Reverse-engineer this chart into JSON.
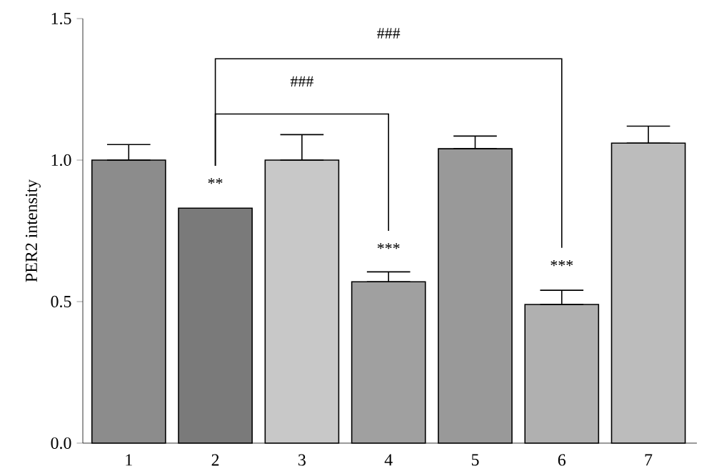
{
  "chart_data": {
    "type": "bar",
    "ylabel": "PER2 intensity",
    "categories": [
      "1",
      "2",
      "3",
      "4",
      "5",
      "6",
      "7"
    ],
    "values": [
      1.0,
      0.83,
      1.0,
      0.57,
      1.04,
      0.49,
      1.06
    ],
    "errors": [
      [
        1.0,
        1.055
      ],
      null,
      [
        1.0,
        1.09
      ],
      [
        0.57,
        0.605
      ],
      [
        1.04,
        1.085
      ],
      [
        0.49,
        0.54
      ],
      [
        1.06,
        1.12
      ]
    ],
    "colors": [
      "#8c8c8c",
      "#7a7a7a",
      "#c8c8c8",
      "#a0a0a0",
      "#999999",
      "#b0b0b0",
      "#bcbcbc"
    ],
    "ylim": [
      0,
      1.5
    ],
    "yticks": [
      {
        "value": 0,
        "label": "0.0"
      },
      {
        "value": 0.5,
        "label": "0.5"
      },
      {
        "value": 1.0,
        "label": "1.0"
      },
      {
        "value": 1.5,
        "label": "1.5"
      }
    ],
    "annotations": [
      "**",
      "***",
      "***",
      "###",
      "###"
    ]
  }
}
